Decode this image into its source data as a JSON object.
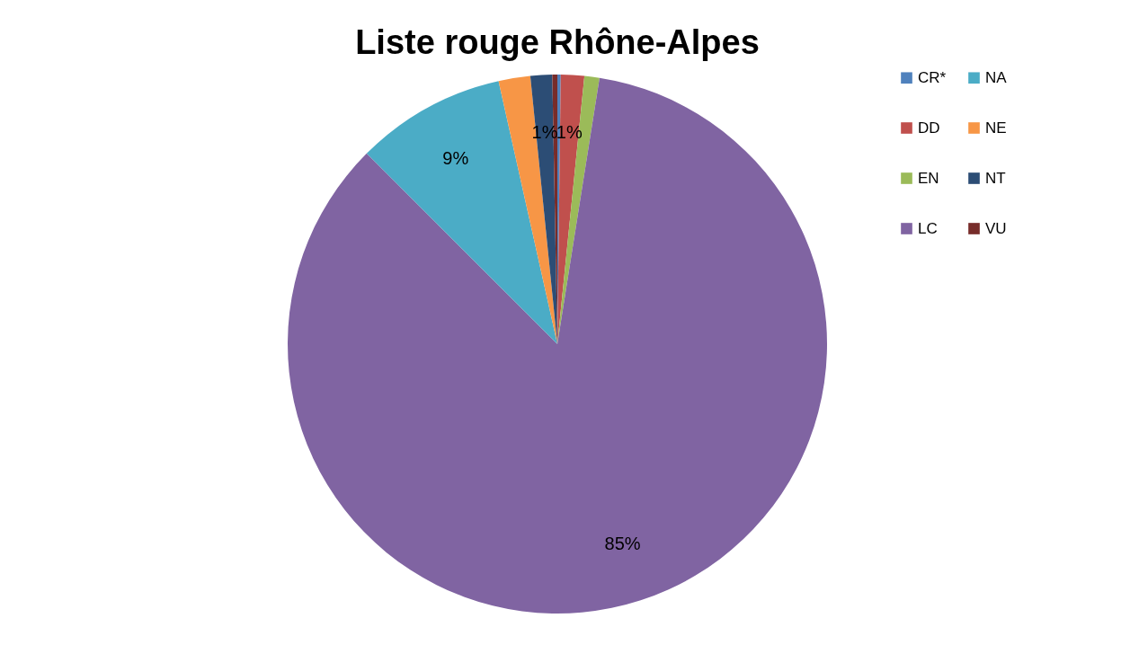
{
  "chart_data": {
    "type": "pie",
    "title": "Liste rouge Rhône-Alpes",
    "categories": [
      "CR*",
      "DD",
      "EN",
      "LC",
      "NA",
      "NE",
      "NT",
      "VU"
    ],
    "values": [
      0.2,
      1.4,
      0.9,
      85,
      9.0,
      1.9,
      1.3,
      0.3
    ],
    "value_labels": [
      null,
      "1%",
      null,
      "85%",
      "9%",
      null,
      "1%",
      null
    ],
    "colors": [
      "#4f81bd",
      "#c0504d",
      "#9bbb59",
      "#8064a2",
      "#4bacc6",
      "#f79646",
      "#2c4d75",
      "#772c2a"
    ],
    "legend": "right"
  }
}
